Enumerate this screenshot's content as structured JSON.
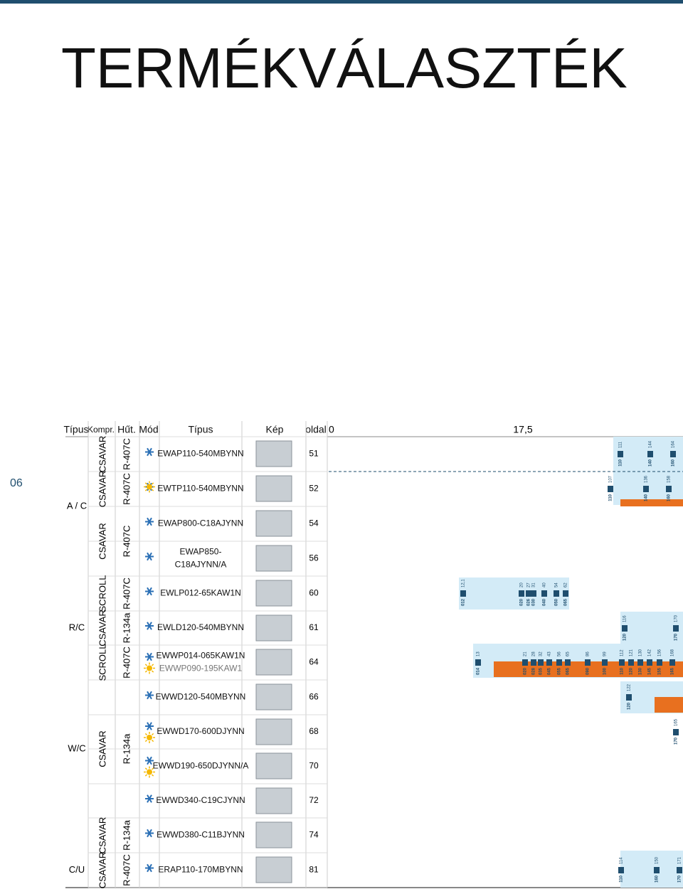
{
  "header": {
    "title": "TERMÉKVÁLASZTÉK",
    "page": "06"
  },
  "table": {
    "columns": [
      "Típus",
      "Kompr.",
      "Hűt.",
      "Mód",
      "Típus",
      "Kép",
      "oldal"
    ],
    "groups": {
      "tipus": [
        "A / C",
        "R/C",
        "W/C",
        "C/U"
      ],
      "kompr": [
        "CSAVAR",
        "CSAVAR",
        "CSAVAR",
        "SCROLL",
        "CSAVAR",
        "SCROLL",
        "CSAVAR",
        "CSAVAR",
        "CSAVAR"
      ],
      "hut": [
        "R-407C",
        "R-407C",
        "R-407C",
        "R-407C",
        "R-134a",
        "R-407C",
        "R-134a",
        "R-134a",
        "R-407C"
      ]
    },
    "rows": [
      {
        "models": [
          "EWAP110-540MBYNN"
        ],
        "page": "51"
      },
      {
        "models": [
          "EWTP110-540MBYNN"
        ],
        "page": "52"
      },
      {
        "models": [
          "EWAP800-C18AJYNN"
        ],
        "page": "54"
      },
      {
        "models": [
          "EWAP850-",
          "C18AJYNN/A"
        ],
        "page": "56"
      },
      {
        "models": [
          "EWLP012-65KAW1N"
        ],
        "page": "60"
      },
      {
        "models": [
          "EWLD120-540MBYNN"
        ],
        "page": "61"
      },
      {
        "models": [
          "EWWP014-065KAW1N",
          "EWWP090-195KAW1"
        ],
        "page": "64"
      },
      {
        "models": [
          "EWWD120-540MBYNN"
        ],
        "page": "66"
      },
      {
        "models": [
          "EWWD170-600DJYNN"
        ],
        "page": "68"
      },
      {
        "models": [
          "EWWD190-650DJYNN/A"
        ],
        "page": "70"
      },
      {
        "models": [
          "EWWD340-C19CJYNN"
        ],
        "page": "72"
      },
      {
        "models": [
          "EWWD380-C11BJYNN"
        ],
        "page": "74"
      },
      {
        "models": [
          "ERAP110-170MBYNN"
        ],
        "page": "81"
      }
    ]
  },
  "chart": {
    "axis": [
      "0",
      "17,5"
    ],
    "markers": [
      {
        "labels": [
          "110",
          "111"
        ]
      },
      {
        "labels": [
          "140",
          "144"
        ]
      },
      {
        "labels": [
          "160",
          "164"
        ]
      },
      {
        "labels": [
          "110",
          "107"
        ]
      },
      {
        "labels": [
          "140",
          "136"
        ]
      },
      {
        "labels": [
          "160",
          "158"
        ]
      },
      {
        "labels": [
          "012",
          "12,1"
        ]
      },
      {
        "labels": [
          "020",
          "20"
        ]
      },
      {
        "labels": [
          "026",
          "27"
        ]
      },
      {
        "labels": [
          "030",
          "31"
        ]
      },
      {
        "labels": [
          "040",
          "40"
        ]
      },
      {
        "labels": [
          "050",
          "54"
        ]
      },
      {
        "labels": [
          "065",
          "62"
        ]
      },
      {
        "labels": [
          "120",
          "116"
        ]
      },
      {
        "labels": [
          "170",
          "170"
        ]
      },
      {
        "labels": [
          "014",
          "13"
        ]
      },
      {
        "labels": [
          "020",
          "21"
        ]
      },
      {
        "labels": [
          "028",
          "28"
        ]
      },
      {
        "labels": [
          "035",
          "32"
        ]
      },
      {
        "labels": [
          "045",
          "43"
        ]
      },
      {
        "labels": [
          "055",
          "56"
        ]
      },
      {
        "labels": [
          "065",
          "65"
        ]
      },
      {
        "labels": [
          "090",
          "86"
        ]
      },
      {
        "labels": [
          "100",
          "99"
        ]
      },
      {
        "labels": [
          "110",
          "112"
        ]
      },
      {
        "labels": [
          "120",
          "121"
        ]
      },
      {
        "labels": [
          "130",
          "130"
        ]
      },
      {
        "labels": [
          "145",
          "142"
        ]
      },
      {
        "labels": [
          "155",
          "156"
        ]
      },
      {
        "labels": [
          "165",
          "168"
        ]
      },
      {
        "labels": [
          "120",
          "122"
        ]
      },
      {
        "labels": [
          "170",
          "165"
        ]
      },
      {
        "labels": [
          "110",
          "114"
        ]
      },
      {
        "labels": [
          "160",
          "150"
        ]
      },
      {
        "labels": [
          "170",
          "171"
        ]
      }
    ]
  }
}
